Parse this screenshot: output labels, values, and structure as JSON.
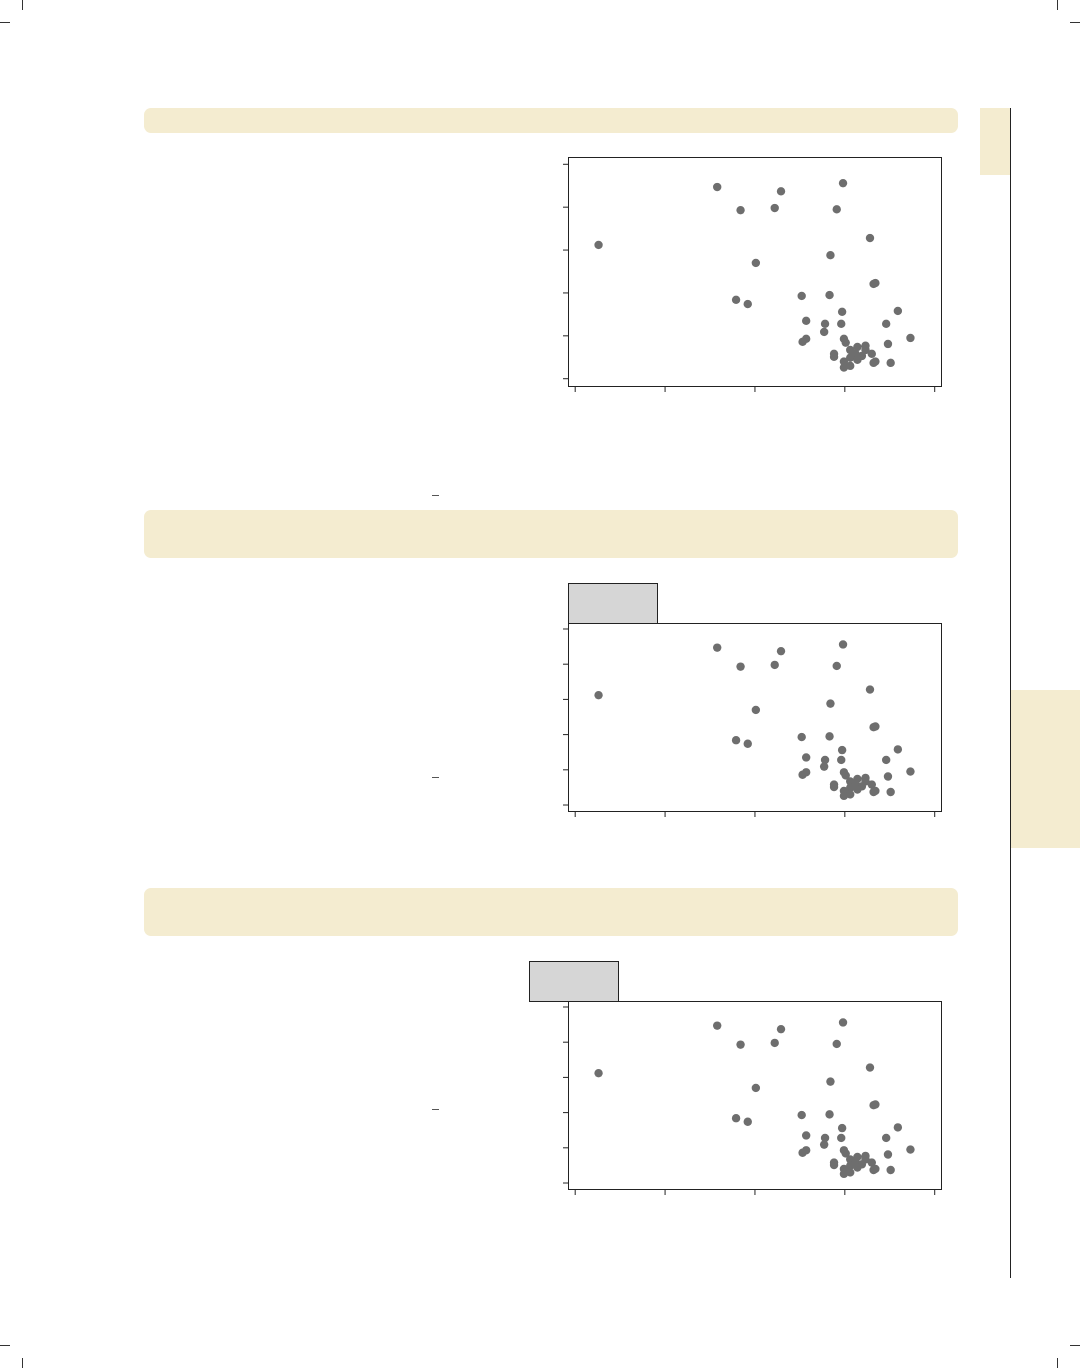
{
  "colors": {
    "banner": "#f4ecd0",
    "point": "#6e6e6e",
    "label_box": "#d6d6d6"
  },
  "chart_data": {
    "type": "scatter",
    "panels": 3,
    "title": "",
    "xlabel": "",
    "ylabel": "",
    "x_ticks": [
      0,
      1,
      2,
      3,
      4
    ],
    "y_ticks": [
      0,
      1,
      2,
      3,
      4,
      5
    ],
    "xlim": [
      -0.08,
      4.07
    ],
    "ylim": [
      -0.17,
      5.17
    ],
    "grid": false,
    "points": [
      [
        0.26,
        3.12
      ],
      [
        1.58,
        4.47
      ],
      [
        1.84,
        3.93
      ],
      [
        2.22,
        3.98
      ],
      [
        2.29,
        4.37
      ],
      [
        2.98,
        4.56
      ],
      [
        2.91,
        3.95
      ],
      [
        3.28,
        3.28
      ],
      [
        2.01,
        2.7
      ],
      [
        2.84,
        2.88
      ],
      [
        3.34,
        2.23
      ],
      [
        3.32,
        2.21
      ],
      [
        1.79,
        1.84
      ],
      [
        1.92,
        1.74
      ],
      [
        2.52,
        1.93
      ],
      [
        2.83,
        1.95
      ],
      [
        2.97,
        1.56
      ],
      [
        3.59,
        1.58
      ],
      [
        2.57,
        1.35
      ],
      [
        2.78,
        1.28
      ],
      [
        2.96,
        1.28
      ],
      [
        3.46,
        1.28
      ],
      [
        2.77,
        1.09
      ],
      [
        2.57,
        0.93
      ],
      [
        2.53,
        0.86
      ],
      [
        2.99,
        0.93
      ],
      [
        3.73,
        0.95
      ],
      [
        3.01,
        0.84
      ],
      [
        3.48,
        0.81
      ],
      [
        3.14,
        0.74
      ],
      [
        3.23,
        0.77
      ],
      [
        3.06,
        0.67
      ],
      [
        2.88,
        0.58
      ],
      [
        3.23,
        0.67
      ],
      [
        3.12,
        0.58
      ],
      [
        3.3,
        0.58
      ],
      [
        2.88,
        0.51
      ],
      [
        3.19,
        0.53
      ],
      [
        3.06,
        0.49
      ],
      [
        3.14,
        0.44
      ],
      [
        2.99,
        0.4
      ],
      [
        3.34,
        0.4
      ],
      [
        3.32,
        0.37
      ],
      [
        3.51,
        0.37
      ],
      [
        3.06,
        0.3
      ],
      [
        2.99,
        0.26
      ]
    ]
  }
}
